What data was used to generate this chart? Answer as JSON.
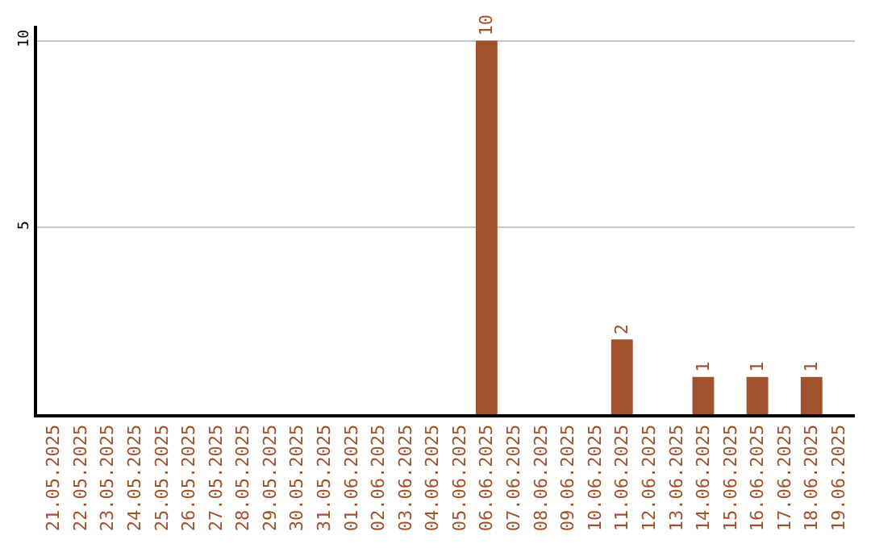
{
  "chart_data": {
    "type": "bar",
    "categories": [
      "21.05.2025",
      "22.05.2025",
      "23.05.2025",
      "24.05.2025",
      "25.05.2025",
      "26.05.2025",
      "27.05.2025",
      "28.05.2025",
      "29.05.2025",
      "30.05.2025",
      "31.05.2025",
      "01.06.2025",
      "02.06.2025",
      "03.06.2025",
      "04.06.2025",
      "05.06.2025",
      "06.06.2025",
      "07.06.2025",
      "08.06.2025",
      "09.06.2025",
      "10.06.2025",
      "11.06.2025",
      "12.06.2025",
      "13.06.2025",
      "14.06.2025",
      "15.06.2025",
      "16.06.2025",
      "17.06.2025",
      "18.06.2025",
      "19.06.2025"
    ],
    "values": [
      0,
      0,
      0,
      0,
      0,
      0,
      0,
      0,
      0,
      0,
      0,
      0,
      0,
      0,
      0,
      0,
      10,
      0,
      0,
      0,
      0,
      2,
      0,
      0,
      1,
      0,
      1,
      0,
      1,
      0
    ],
    "value_labels": [
      null,
      null,
      null,
      null,
      null,
      null,
      null,
      null,
      null,
      null,
      null,
      null,
      null,
      null,
      null,
      null,
      "10",
      null,
      null,
      null,
      null,
      "2",
      null,
      null,
      "1",
      null,
      "1",
      null,
      "1",
      null
    ],
    "color": "#a0522d",
    "ylim": [
      0,
      10.4
    ],
    "yticks": [
      5,
      10
    ],
    "grid": "y",
    "legend": false
  }
}
